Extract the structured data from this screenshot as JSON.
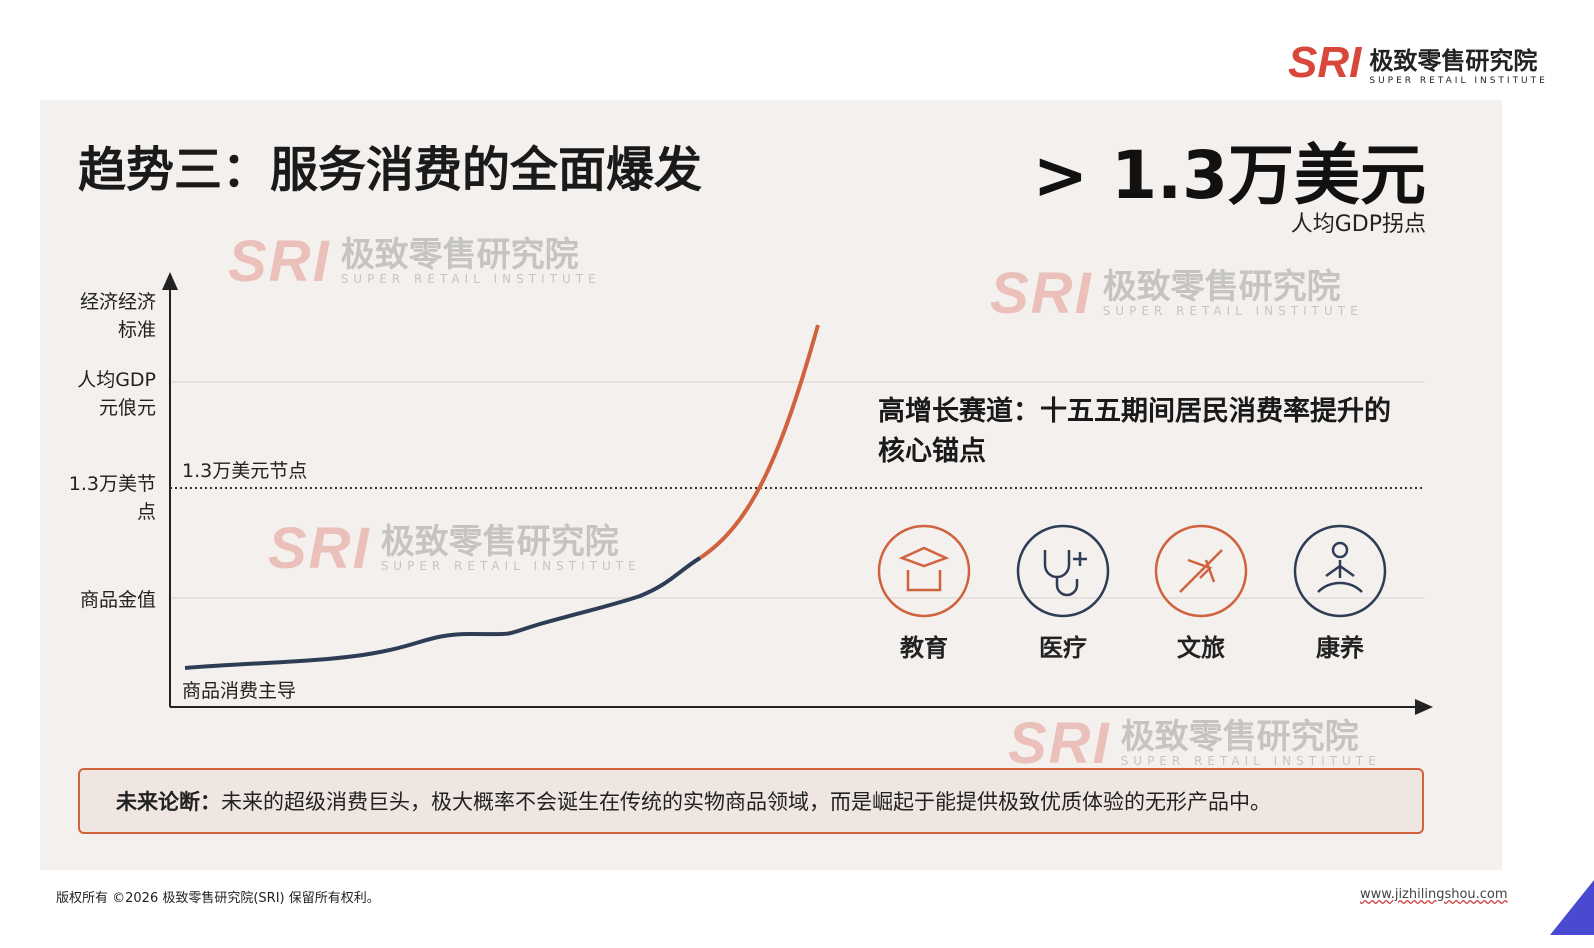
{
  "brand": {
    "logo": "SRI",
    "name_cn": "极致零售研究院",
    "name_en": "SUPER RETAIL INSTITUTE"
  },
  "slide": {
    "title": "趋势三：服务消费的全面爆发",
    "headline": "> 1.3万美元",
    "headline_sub": "人均GDP拐点",
    "chart": {
      "y_labels": [
        "经济经济标准",
        "人均GDP元俍元",
        "1.3万美节点",
        "商品金值"
      ],
      "threshold_label": "1.3万美元节点",
      "start_label": "商品消费主导"
    },
    "panel": {
      "heading": "高增长赛道：十五五期间居民消费率提升的核心锚点",
      "sectors": [
        "教育",
        "医疗",
        "文旅",
        "康养"
      ]
    },
    "conclusion": {
      "label": "未来论断：",
      "text": "未来的超级消费巨头，极大概率不会诞生在传统的实物商品领域，而是崛起于能提供极致优质体验的无形产品中。"
    }
  },
  "footer": {
    "copyright": "版权所有 ©2026 极致零售研究院(SRI) 保留所有权利。",
    "url": "www.jizhilingshou.com"
  }
}
